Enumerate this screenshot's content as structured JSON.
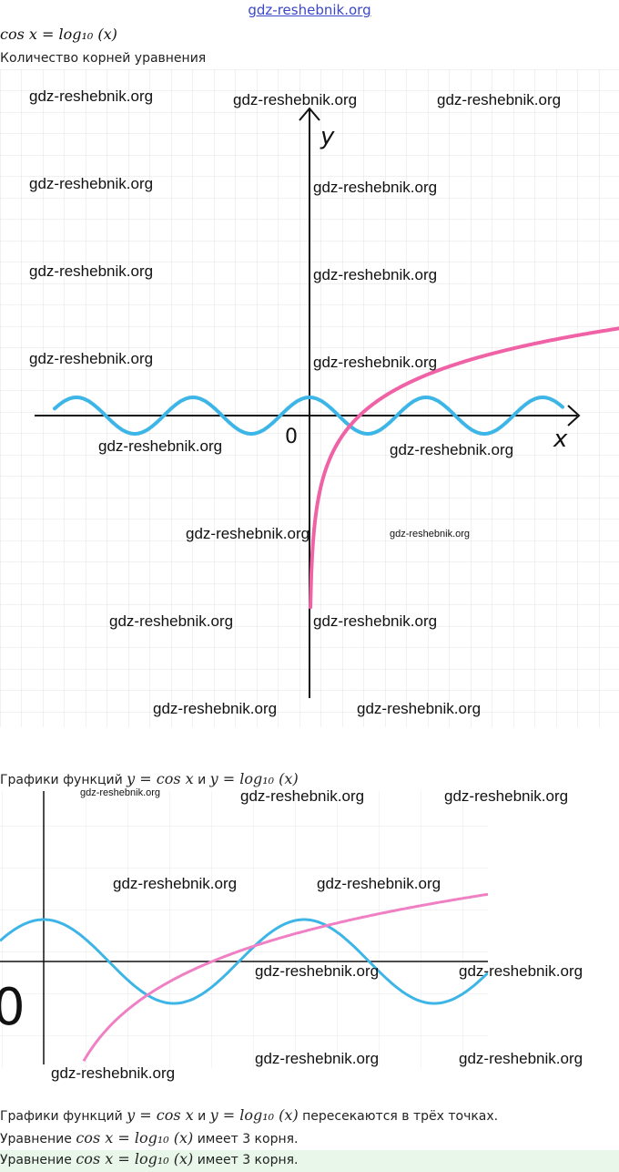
{
  "header": {
    "site_link": "gdz-reshebnik.org"
  },
  "title_equation": "cos x = log₁₀ (x)",
  "prompt": "Количество корней уравнения",
  "figure1": {
    "axis_x": "x",
    "axis_y": "y",
    "origin": "0",
    "curve_colors": {
      "cos": "#3db5e6",
      "log": "#f062a6"
    }
  },
  "caption2": {
    "prefix": "Графики функций ",
    "f1": "y = cos x",
    "and": " и ",
    "f2": "y = log₁₀ (x)"
  },
  "figure2": {
    "origin": "0",
    "curve_colors": {
      "cos": "#3db5e6",
      "log": "#f080c4"
    }
  },
  "answer": {
    "line1_prefix": "Графики функций ",
    "line1_f1": "y = cos x",
    "line1_and": " и ",
    "line1_f2": "y = log₁₀ (x)",
    "line1_suffix": " пересекаются в трёх точках.",
    "line2_prefix": "Уравнение ",
    "line2_eq": "cos x = log₁₀ (x)",
    "line2_suffix": " имеет 3 корня.",
    "line3_prefix": "Уравнение ",
    "line3_eq": "cos x = log₁₀ (x)",
    "line3_suffix": " имеет 3 корня."
  },
  "watermark": "gdz-reshebnik.org"
}
